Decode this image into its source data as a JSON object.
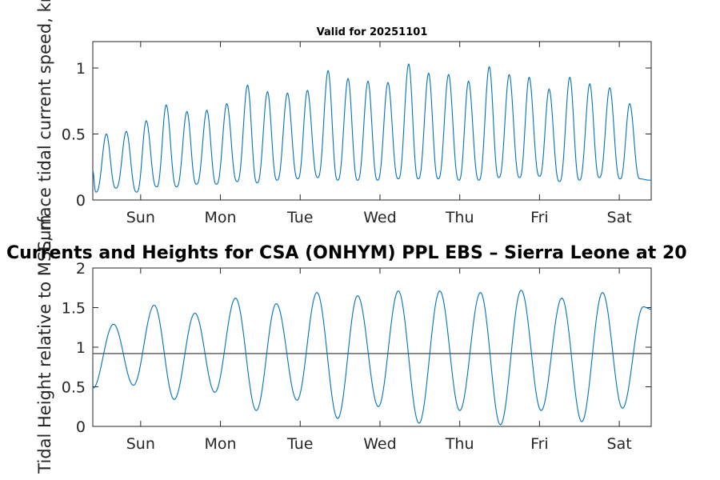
{
  "chart_data": [
    {
      "type": "line",
      "title": "Valid for 20251101",
      "ylabel": "Surface tidal current speed, knots",
      "xlabel": "",
      "xlim": [
        0,
        7
      ],
      "ylim": [
        0,
        1.2
      ],
      "yticks": [
        0,
        0.5,
        1
      ],
      "ytick_labels": [
        "0",
        "0.5",
        "1"
      ],
      "xticks": [
        0.6,
        1.6,
        2.6,
        3.6,
        4.6,
        5.6,
        6.6
      ],
      "xtick_labels": [
        "Sun",
        "Mon",
        "Tue",
        "Wed",
        "Thu",
        "Fri",
        "Sat"
      ],
      "series": [
        {
          "name": "current speed",
          "color": "#0072BD",
          "peaks_x": [
            0.17,
            0.42,
            0.67,
            0.92,
            1.18,
            1.43,
            1.68,
            1.94,
            2.19,
            2.44,
            2.69,
            2.95,
            3.2,
            3.45,
            3.7,
            3.96,
            4.21,
            4.46,
            4.71,
            4.97,
            5.22,
            5.47,
            5.72,
            5.98,
            6.23,
            6.48,
            6.73
          ],
          "peaks_y": [
            0.5,
            0.52,
            0.6,
            0.72,
            0.67,
            0.68,
            0.73,
            0.87,
            0.82,
            0.81,
            0.83,
            0.98,
            0.92,
            0.9,
            0.89,
            1.03,
            0.96,
            0.95,
            0.9,
            1.01,
            0.95,
            0.93,
            0.84,
            0.93,
            0.88,
            0.85,
            0.73
          ],
          "troughs_x": [
            0.04,
            0.29,
            0.55,
            0.8,
            1.05,
            1.3,
            1.55,
            1.81,
            2.06,
            2.31,
            2.57,
            2.82,
            3.07,
            3.32,
            3.57,
            3.83,
            4.08,
            4.33,
            4.59,
            4.84,
            5.09,
            5.35,
            5.6,
            5.85,
            6.1,
            6.35,
            6.61,
            6.86,
            7.0
          ],
          "troughs_y": [
            0.06,
            0.09,
            0.06,
            0.1,
            0.1,
            0.12,
            0.12,
            0.14,
            0.13,
            0.15,
            0.16,
            0.17,
            0.15,
            0.15,
            0.15,
            0.16,
            0.16,
            0.16,
            0.15,
            0.15,
            0.17,
            0.17,
            0.18,
            0.14,
            0.15,
            0.17,
            0.16,
            0.16,
            0.15
          ]
        }
      ]
    },
    {
      "type": "line",
      "title": "Currents and Heights for CSA (ONHYM) PPL EBS  – Sierra Leone at 20",
      "ylabel": "Tidal Height relative to MSL, m",
      "xlabel": "",
      "xlim": [
        0,
        7
      ],
      "ylim": [
        0,
        2
      ],
      "yticks": [
        0,
        0.5,
        1,
        1.5,
        2
      ],
      "ytick_labels": [
        "0",
        "0.5",
        "1",
        "1.5",
        "2"
      ],
      "xticks": [
        0.6,
        1.6,
        2.6,
        3.6,
        4.6,
        5.6,
        6.6
      ],
      "xtick_labels": [
        "Sun",
        "Mon",
        "Tue",
        "Wed",
        "Thu",
        "Fri",
        "Sat"
      ],
      "reference_line": {
        "y": 0.92,
        "color": "#555555"
      },
      "series": [
        {
          "name": "tidal height",
          "color": "#0072BD",
          "x": [
            0.0,
            0.26,
            0.51,
            0.77,
            1.02,
            1.28,
            1.53,
            1.79,
            2.05,
            2.3,
            2.56,
            2.81,
            3.07,
            3.32,
            3.58,
            3.83,
            4.09,
            4.35,
            4.6,
            4.86,
            5.11,
            5.37,
            5.62,
            5.88,
            6.13,
            6.39,
            6.64,
            6.9,
            7.0
          ],
          "y": [
            0.48,
            1.29,
            0.52,
            1.53,
            0.34,
            1.43,
            0.43,
            1.62,
            0.2,
            1.55,
            0.33,
            1.69,
            0.1,
            1.65,
            0.25,
            1.71,
            0.04,
            1.71,
            0.2,
            1.69,
            0.02,
            1.72,
            0.2,
            1.62,
            0.06,
            1.69,
            0.23,
            1.51,
            1.48
          ]
        }
      ]
    }
  ]
}
